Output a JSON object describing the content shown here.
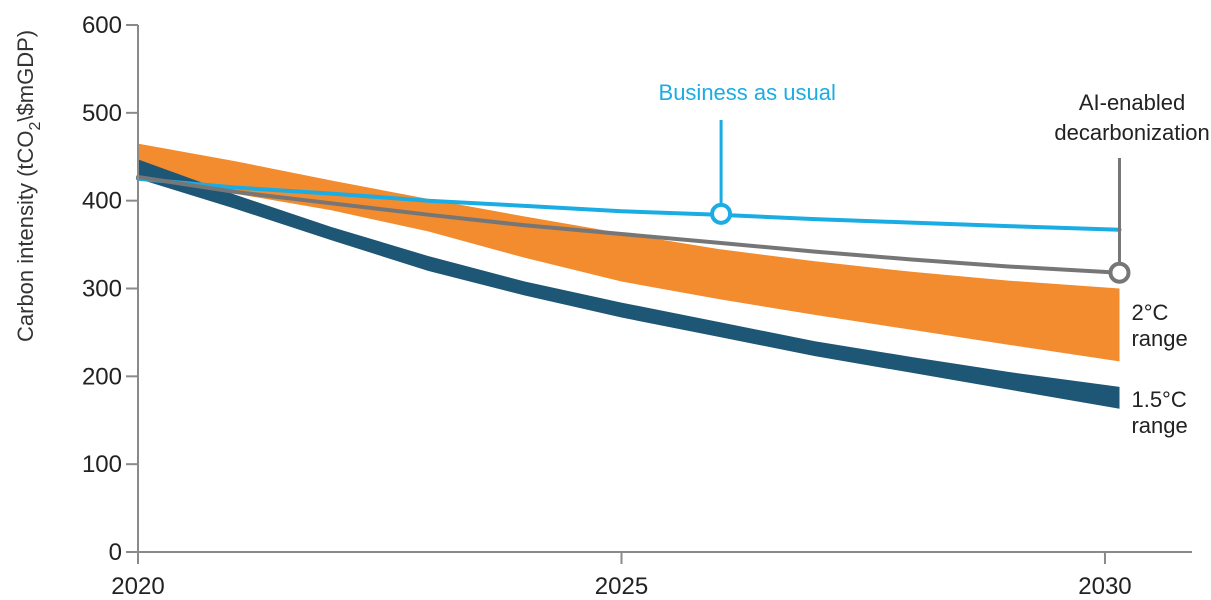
{
  "chart_data": {
    "type": "line",
    "ylabel": {
      "prefix": "Carbon intensity (tCO",
      "subscript": "2",
      "suffix": "\\$mGDP)"
    },
    "xlabel": "",
    "x_ticks": [
      2020,
      2025,
      2030
    ],
    "y_ticks": [
      0,
      100,
      200,
      300,
      400,
      500,
      600
    ],
    "xlim": [
      2020,
      2030.9
    ],
    "ylim": [
      0,
      600
    ],
    "bands": [
      {
        "name": "2°C range",
        "label_lines": [
          "2°C",
          "range"
        ],
        "color": "#F28C2E",
        "x": [
          2020,
          2021,
          2022,
          2023,
          2024,
          2025,
          2026,
          2027,
          2028,
          2029,
          2030.15
        ],
        "upper": [
          465,
          445,
          423,
          402,
          382,
          363,
          345,
          331,
          319,
          309,
          300
        ],
        "lower": [
          427,
          408,
          389,
          365,
          335,
          308,
          288,
          270,
          253,
          236,
          217
        ]
      },
      {
        "name": "1.5°C range",
        "label_lines": [
          "1.5°C",
          "range"
        ],
        "color": "#1E5675",
        "x": [
          2020,
          2021,
          2022,
          2023,
          2024,
          2025,
          2026,
          2027,
          2028,
          2029,
          2030.15
        ],
        "upper": [
          447,
          407,
          370,
          337,
          308,
          284,
          262,
          240,
          222,
          205,
          188
        ],
        "lower": [
          425,
          391,
          355,
          320,
          292,
          267,
          245,
          223,
          204,
          185,
          163
        ]
      }
    ],
    "series": [
      {
        "name": "Business as usual",
        "color": "#1AACE3",
        "x": [
          2020,
          2021,
          2022,
          2023,
          2024,
          2025,
          2026,
          2027,
          2028,
          2029,
          2030.15
        ],
        "values": [
          425,
          415,
          408,
          400,
          394,
          388,
          384,
          379,
          375,
          371,
          367
        ],
        "marker_x": 2026.03,
        "marker_y": 385,
        "label_lines": [
          "Business as usual"
        ]
      },
      {
        "name": "AI-enabled decarbonization",
        "color": "#767676",
        "x": [
          2020,
          2021,
          2022,
          2023,
          2024,
          2025,
          2026,
          2027,
          2028,
          2029,
          2030.15
        ],
        "values": [
          427,
          410,
          397,
          384,
          372,
          362,
          352,
          342,
          333,
          325,
          318
        ],
        "marker_x": 2030.15,
        "marker_y": 318,
        "label_lines": [
          "AI-enabled",
          "decarbonization"
        ]
      }
    ]
  }
}
